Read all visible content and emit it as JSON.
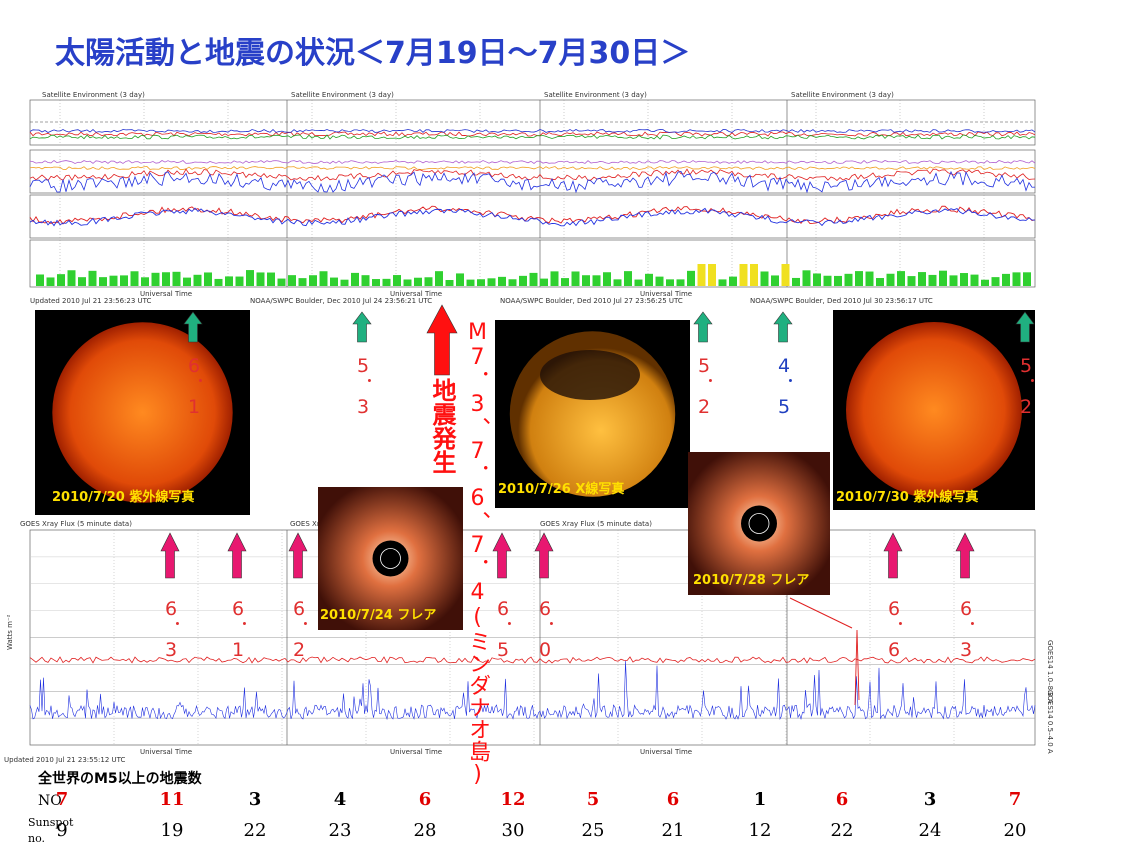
{
  "title": "太陽活動と地震の状況＜7月19日～7月30日＞",
  "top_panel": {
    "header": "Satellite Environment (3 day)",
    "x_label": "Universal Time",
    "footers": [
      "Updated 2010 Jul 21 23:56:23 UTC",
      "NOAA/SWPC Boulder, Dec 2010 Jul 24 23:56:21 UTC",
      "NOAA/SWPC Boulder, Ded 2010 Jul 27 23:56:25 UTC",
      "NOAA/SWPC Boulder, Ded 2010 Jul 30 23:56:17 UTC"
    ]
  },
  "xray_panel": {
    "header": "GOES Xray Flux (5 minute data)",
    "y_label": "Watts m⁻²",
    "x_label": "Universal Time",
    "right_labels": [
      "GOES14 1.0–8.0 A",
      "GOES14 0.5–4.0 A"
    ],
    "footer": "Updated 2010 Jul 21 23:55:12 UTC"
  },
  "photos": [
    {
      "caption": "2010/7/20 紫外線写真"
    },
    {
      "caption": "2010/7/26 X線写真"
    },
    {
      "caption": "2010/7/24 フレア"
    },
    {
      "caption": "2010/7/28 フレア"
    },
    {
      "caption": "2010/7/30 紫外線写真"
    }
  ],
  "top_events": [
    {
      "label": "6．1",
      "color": "#e03030"
    },
    {
      "label": "5．3",
      "color": "#e03030"
    },
    {
      "label": "5．2",
      "color": "#e03030"
    },
    {
      "label": "4．5",
      "color": "#2040c0"
    },
    {
      "label": "5．2",
      "color": "#e03030"
    }
  ],
  "big_event": {
    "arrow_label": "地震発生",
    "label": "M7．3、7．6、7．4(ミンダナオ島)"
  },
  "bottom_events": [
    "6．3",
    "6．1",
    "6．2",
    "6．5",
    "6．0",
    "6．6",
    "6．3"
  ],
  "table": {
    "heading": "全世界のM5以上の地震数",
    "row_labels": [
      "NO",
      "Sunspot no."
    ],
    "counts": [
      {
        "value": 7,
        "color": "#e00000"
      },
      {
        "value": 11,
        "color": "#e00000"
      },
      {
        "value": 3,
        "color": "#000"
      },
      {
        "value": 4,
        "color": "#000"
      },
      {
        "value": 6,
        "color": "#e00000"
      },
      {
        "value": 12,
        "color": "#e00000"
      },
      {
        "value": 5,
        "color": "#e00000"
      },
      {
        "value": 6,
        "color": "#e00000"
      },
      {
        "value": 1,
        "color": "#000"
      },
      {
        "value": 6,
        "color": "#e00000"
      },
      {
        "value": 3,
        "color": "#000"
      },
      {
        "value": 7,
        "color": "#e00000"
      }
    ],
    "sunspots": [
      9,
      19,
      22,
      23,
      28,
      30,
      25,
      21,
      12,
      22,
      24,
      20
    ]
  }
}
